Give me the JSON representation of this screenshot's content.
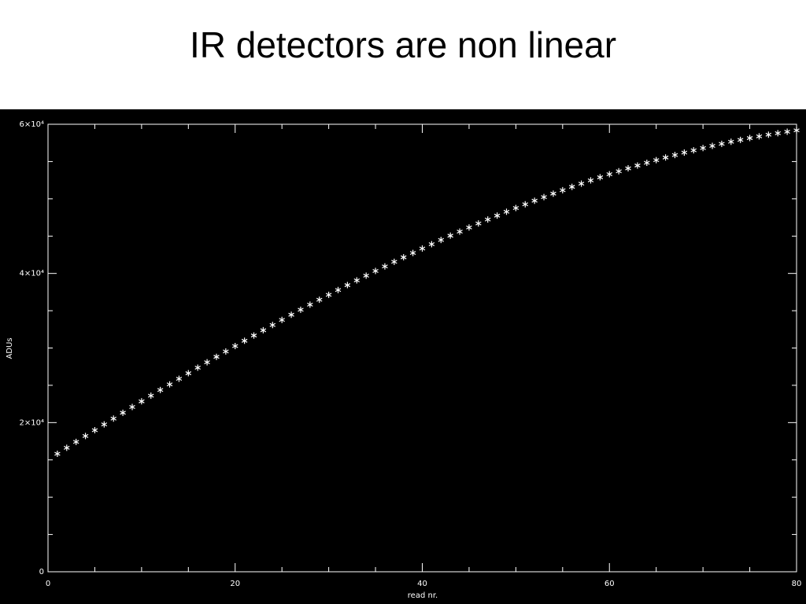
{
  "chart_data": {
    "type": "scatter",
    "title": "IR detectors are non linear",
    "x_label": "read nr.",
    "y_label": "ADUs",
    "marker": "asterisk",
    "color": "#ffffff",
    "xlim": [
      0,
      80
    ],
    "ylim": [
      0,
      60000
    ],
    "xticks": [
      0,
      20,
      40,
      60,
      80
    ],
    "yticks": [
      0,
      {
        "value": 20000,
        "label": "2×10⁴"
      },
      {
        "value": 40000,
        "label": "4×10⁴"
      },
      {
        "value": 60000,
        "label": "6×10⁴"
      }
    ],
    "xminorticks": [
      5,
      10,
      15,
      25,
      30,
      35,
      45,
      50,
      55,
      65,
      70,
      75
    ],
    "yminorticks": [
      5000,
      10000,
      15000,
      25000,
      30000,
      35000,
      45000,
      50000,
      55000
    ],
    "x": [
      1,
      2,
      3,
      4,
      5,
      6,
      7,
      8,
      9,
      10,
      11,
      12,
      13,
      14,
      15,
      16,
      17,
      18,
      19,
      20,
      21,
      22,
      23,
      24,
      25,
      26,
      27,
      28,
      29,
      30,
      31,
      32,
      33,
      34,
      35,
      36,
      37,
      38,
      39,
      40,
      41,
      42,
      43,
      44,
      45,
      46,
      47,
      48,
      49,
      50,
      51,
      52,
      53,
      54,
      55,
      56,
      57,
      58,
      59,
      60,
      61,
      62,
      63,
      64,
      65,
      66,
      67,
      68,
      69,
      70,
      71,
      72,
      73,
      74,
      75,
      76,
      77,
      78,
      79,
      80
    ],
    "y": [
      15820,
      16620,
      17410,
      18200,
      18980,
      19760,
      20540,
      21320,
      22090,
      22850,
      23610,
      24370,
      25120,
      25870,
      26620,
      27360,
      28090,
      28820,
      29540,
      30260,
      30970,
      31680,
      32380,
      33080,
      33770,
      34460,
      35130,
      35810,
      36470,
      37130,
      37780,
      38430,
      39070,
      39700,
      40330,
      40940,
      41560,
      42160,
      42750,
      43340,
      43920,
      44490,
      45060,
      45610,
      46160,
      46700,
      47230,
      47750,
      48270,
      48770,
      49270,
      49750,
      50230,
      50700,
      51160,
      51610,
      52040,
      52470,
      52890,
      53300,
      53700,
      54090,
      54470,
      54830,
      55190,
      55540,
      55870,
      56200,
      56510,
      56810,
      57100,
      57380,
      57650,
      57900,
      58150,
      58380,
      58600,
      58800,
      59000,
      59180
    ]
  }
}
